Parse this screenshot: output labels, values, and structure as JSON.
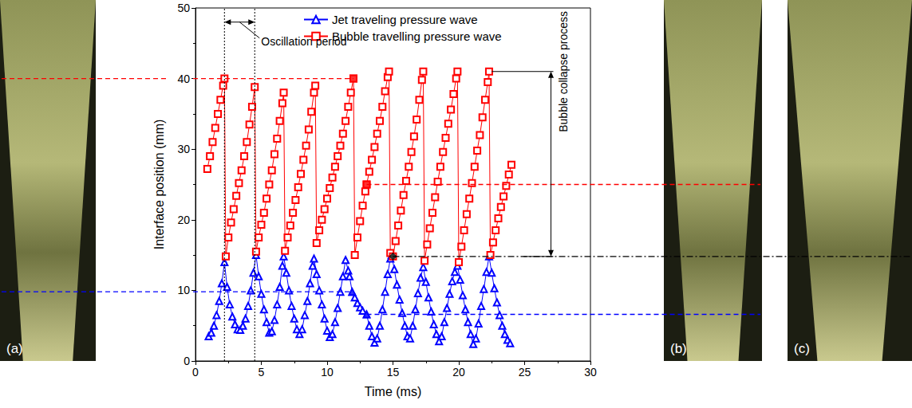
{
  "chart_data": {
    "type": "line",
    "xlabel": "Time (ms)",
    "ylabel": "Interface position (mm)",
    "xlim": [
      0,
      30
    ],
    "xticks": [
      0,
      5,
      10,
      15,
      20,
      25,
      30
    ],
    "ylim": [
      0,
      50
    ],
    "yticks": [
      0,
      10,
      20,
      30,
      40,
      50
    ],
    "grid": false,
    "legend": "top",
    "series": [
      {
        "name": "Jet traveling pressure wave",
        "color": "#0000ff",
        "marker": "triangle",
        "x": [
          1.0,
          1.2,
          1.4,
          1.6,
          1.8,
          2.0,
          2.2,
          2.4,
          2.6,
          2.8,
          3.0,
          3.2,
          3.4,
          3.6,
          3.8,
          4.0,
          4.2,
          4.4,
          4.6,
          4.8,
          5.0,
          5.2,
          5.4,
          5.6,
          5.8,
          6.0,
          6.2,
          6.4,
          6.6,
          6.7,
          6.9,
          7.1,
          7.3,
          7.5,
          7.7,
          7.9,
          8.1,
          8.3,
          8.5,
          8.7,
          8.9,
          9.0,
          9.2,
          9.4,
          9.6,
          9.8,
          10.0,
          10.2,
          10.4,
          10.6,
          10.8,
          11.0,
          11.2,
          11.4,
          11.6,
          11.7,
          11.9,
          12.1,
          12.3,
          12.5,
          12.7,
          13.0,
          13.2,
          13.4,
          13.6,
          13.8,
          14.0,
          14.2,
          14.4,
          14.6,
          14.8,
          14.9,
          15.1,
          15.3,
          15.5,
          15.7,
          15.9,
          16.1,
          16.3,
          16.5,
          16.7,
          16.9,
          17.1,
          17.3,
          17.5,
          17.7,
          17.9,
          18.1,
          18.3,
          18.5,
          18.7,
          18.9,
          19.1,
          19.3,
          19.5,
          19.7,
          19.9,
          20.1,
          20.3,
          20.5,
          20.7,
          20.9,
          21.1,
          21.3,
          21.5,
          21.7,
          21.9,
          22.1,
          22.3,
          22.5,
          22.7,
          22.9,
          23.1,
          23.3,
          23.5,
          23.7,
          23.9
        ],
        "values": [
          3.5,
          4.0,
          5.0,
          6.5,
          8.5,
          11.0,
          14.0,
          10.5,
          8.0,
          6.3,
          5.2,
          4.5,
          4.4,
          5.0,
          6.0,
          7.8,
          10.0,
          12.5,
          15.0,
          12.0,
          9.5,
          7.3,
          5.5,
          4.0,
          4.2,
          5.8,
          8.0,
          10.5,
          13.5,
          14.8,
          12.5,
          10.0,
          7.8,
          6.0,
          4.5,
          3.8,
          4.5,
          6.5,
          8.5,
          11.0,
          13.5,
          14.5,
          12.3,
          10.0,
          8.0,
          6.0,
          4.3,
          3.4,
          3.8,
          5.5,
          7.5,
          9.8,
          12.0,
          14.3,
          12.8,
          12.0,
          9.8,
          9.0,
          8.2,
          7.6,
          7.1,
          6.6,
          5.0,
          3.5,
          2.6,
          3.2,
          5.0,
          7.3,
          9.8,
          12.3,
          14.5,
          15.0,
          13.0,
          10.8,
          8.7,
          6.8,
          5.0,
          3.5,
          3.2,
          5.0,
          7.3,
          9.6,
          11.8,
          13.3,
          11.2,
          9.0,
          7.0,
          5.2,
          3.8,
          2.8,
          3.5,
          5.5,
          7.5,
          9.5,
          11.3,
          12.6,
          13.5,
          11.5,
          9.3,
          7.3,
          5.5,
          3.8,
          2.4,
          3.2,
          5.3,
          7.8,
          10.2,
          12.6,
          14.8,
          12.5,
          10.3,
          8.3,
          6.5,
          5.0,
          3.8,
          3.0,
          2.5
        ]
      },
      {
        "name": "Bubble travelling pressure wave",
        "color": "#ff0000",
        "marker": "square",
        "x": [
          0.9,
          1.1,
          1.3,
          1.5,
          1.7,
          1.9,
          2.1,
          2.2,
          2.3,
          2.5,
          2.7,
          2.9,
          3.1,
          3.3,
          3.5,
          3.7,
          3.9,
          4.1,
          4.3,
          4.5,
          4.6,
          4.8,
          5.0,
          5.2,
          5.4,
          5.6,
          5.8,
          6.0,
          6.2,
          6.4,
          6.6,
          6.7,
          6.8,
          7.0,
          7.2,
          7.4,
          7.6,
          7.8,
          8.0,
          8.2,
          8.4,
          8.6,
          8.8,
          9.0,
          9.1,
          9.2,
          9.4,
          9.6,
          9.8,
          10.0,
          10.2,
          10.4,
          10.6,
          10.8,
          11.0,
          11.2,
          11.4,
          11.6,
          11.8,
          12.0,
          12.1,
          12.3,
          12.5,
          12.7,
          12.9,
          13.0,
          13.2,
          13.4,
          13.6,
          13.8,
          14.0,
          14.2,
          14.4,
          14.6,
          14.7,
          14.8,
          15.0,
          15.2,
          15.4,
          15.6,
          15.8,
          16.0,
          16.2,
          16.4,
          16.6,
          16.8,
          17.0,
          17.2,
          17.3,
          17.4,
          17.6,
          17.8,
          18.0,
          18.2,
          18.4,
          18.6,
          18.8,
          19.0,
          19.2,
          19.4,
          19.6,
          19.8,
          19.9,
          20.0,
          20.2,
          20.4,
          20.6,
          20.8,
          21.0,
          21.2,
          21.4,
          21.6,
          21.8,
          22.0,
          22.2,
          22.3,
          22.4,
          22.6,
          22.8,
          23.0,
          23.2,
          23.4,
          23.6,
          23.8,
          24.0
        ],
        "values": [
          27.2,
          29.0,
          31.0,
          33.0,
          35.0,
          37.0,
          39.0,
          40.0,
          14.8,
          17.5,
          19.6,
          21.5,
          23.4,
          25.2,
          27.0,
          29.0,
          31.0,
          33.5,
          36.0,
          38.8,
          15.5,
          17.5,
          19.3,
          21.0,
          23.0,
          25.0,
          27.0,
          29.3,
          31.5,
          34.0,
          36.5,
          38.0,
          15.6,
          17.5,
          19.2,
          21.0,
          22.8,
          24.6,
          26.5,
          28.5,
          30.5,
          32.8,
          35.3,
          38.0,
          39.0,
          16.7,
          18.5,
          20.0,
          21.5,
          23.0,
          24.5,
          26.0,
          27.5,
          29.0,
          30.5,
          32.2,
          34.0,
          36.0,
          38.0,
          40.0,
          15.0,
          17.5,
          19.8,
          22.0,
          24.0,
          25.0,
          26.8,
          28.5,
          30.3,
          32.2,
          34.0,
          36.0,
          38.2,
          40.2,
          41.0,
          15.3,
          14.8,
          17.0,
          19.2,
          21.3,
          23.5,
          25.5,
          27.5,
          29.6,
          31.8,
          34.2,
          37.0,
          39.8,
          41.0,
          14.2,
          16.5,
          18.8,
          21.0,
          23.2,
          25.4,
          27.5,
          29.6,
          31.6,
          33.6,
          35.6,
          37.8,
          40.0,
          41.0,
          14.0,
          16.2,
          18.5,
          20.8,
          23.0,
          25.2,
          27.5,
          29.8,
          32.0,
          34.5,
          37.0,
          39.5,
          41.0,
          15.0,
          16.8,
          18.5,
          20.2,
          21.8,
          23.3,
          24.8,
          26.4,
          27.8
        ]
      }
    ],
    "highlights": [
      {
        "x": 12.0,
        "y": 40.0,
        "color": "#ff0000",
        "marker": "square"
      },
      {
        "x": 13.0,
        "y": 25.0,
        "color": "#ff0000",
        "marker": "square"
      },
      {
        "x": 11.9,
        "y": 9.8,
        "color": "#0000ff",
        "marker": "triangle"
      },
      {
        "x": 13.0,
        "y": 6.6,
        "color": "#0000ff",
        "marker": "triangle"
      },
      {
        "x": 15.0,
        "y": 14.8,
        "color": "#000000",
        "marker": "diamond"
      }
    ],
    "reference_lines": [
      {
        "y": 40,
        "x": 12.0,
        "side": "left",
        "color": "#ff0000",
        "line_style": "dashed"
      },
      {
        "y": 9.8,
        "x": 11.9,
        "side": "left",
        "color": "#0000ff",
        "line_style": "dashed"
      },
      {
        "y": 25,
        "x": 13.0,
        "side": "right",
        "photo": "(b)",
        "color": "#ff0000",
        "line_style": "dashed"
      },
      {
        "y": 6.6,
        "x": 13.0,
        "side": "right",
        "photo": "(b)",
        "color": "#0000ff",
        "line_style": "dashed"
      },
      {
        "y": 14.8,
        "x": 15.0,
        "side": "right",
        "photo": "(c)",
        "color": "#000000",
        "line_style": "dashdot"
      }
    ],
    "annotations": [
      {
        "text": "Oscillation period",
        "x_from": 2.2,
        "x_to": 4.5,
        "y": 48
      },
      {
        "text": "Bubble collapse process",
        "x": 27,
        "x_from": 22.5,
        "y_from": 14.8,
        "y_to": 41
      }
    ],
    "photos": [
      "(a)",
      "(b)",
      "(c)"
    ]
  }
}
